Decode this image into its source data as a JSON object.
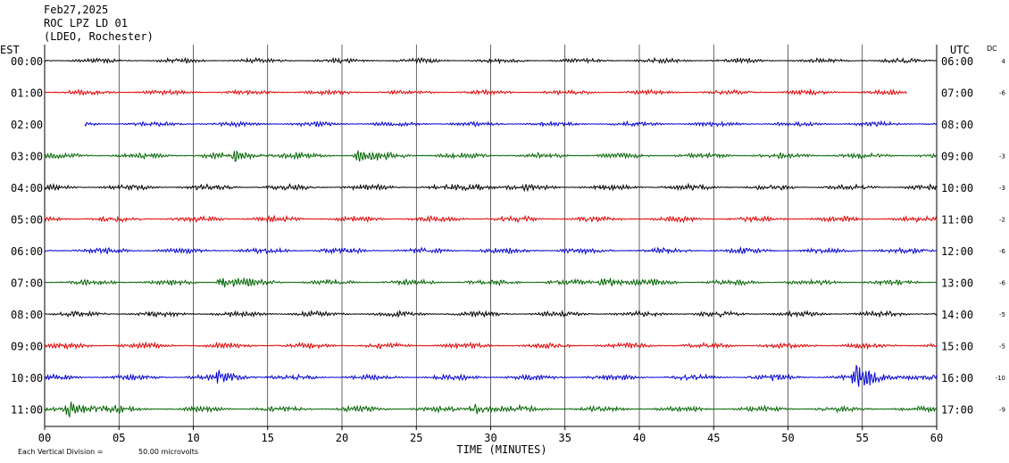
{
  "header": {
    "date": "Feb27,2025",
    "station": "ROC LPZ LD 01",
    "network": "(LDEO, Rochester)"
  },
  "chart_data": {
    "type": "line",
    "left_axis_label": "EST",
    "right_axis_label": "UTC",
    "dc_label": "DC",
    "xlabel": "TIME (MINUTES)",
    "xlim": [
      0,
      60
    ],
    "x_ticks": [
      "00",
      "05",
      "10",
      "15",
      "20",
      "25",
      "30",
      "35",
      "40",
      "45",
      "50",
      "55",
      "60"
    ],
    "grid": "vertical every 5 minutes",
    "footer_note_prefix": "Each Vertical Division =",
    "footer_note_value": "50.00 microvolts",
    "trace_colors": [
      "#000000",
      "#e00000",
      "#0000d0",
      "#006400"
    ],
    "rows": [
      {
        "est": "00:00",
        "utc": "06:00",
        "dc": "4",
        "start_min": 0,
        "end_min": 60,
        "amp": 2.5,
        "events": []
      },
      {
        "est": "01:00",
        "utc": "07:00",
        "dc": "-6",
        "start_min": 0,
        "end_min": 58,
        "amp": 2.5,
        "events": []
      },
      {
        "est": "02:00",
        "utc": "08:00",
        "dc": "",
        "start_min": 2.7,
        "end_min": 60,
        "amp": 2.5,
        "events": []
      },
      {
        "est": "03:00",
        "utc": "09:00",
        "dc": "-3",
        "start_min": 0,
        "end_min": 60,
        "amp": 3,
        "events": [
          {
            "t": 12.8,
            "a": 5
          },
          {
            "t": 21,
            "a": 5
          }
        ]
      },
      {
        "est": "04:00",
        "utc": "10:00",
        "dc": "-3",
        "start_min": 0,
        "end_min": 60,
        "amp": 3,
        "events": [
          {
            "t": 28.5,
            "a": 4
          }
        ]
      },
      {
        "est": "05:00",
        "utc": "11:00",
        "dc": "-2",
        "start_min": 0,
        "end_min": 60,
        "amp": 3,
        "events": []
      },
      {
        "est": "06:00",
        "utc": "12:00",
        "dc": "-6",
        "start_min": 0,
        "end_min": 60,
        "amp": 3,
        "events": []
      },
      {
        "est": "07:00",
        "utc": "13:00",
        "dc": "-6",
        "start_min": 0,
        "end_min": 60,
        "amp": 3,
        "events": [
          {
            "t": 11.8,
            "a": 5
          },
          {
            "t": 37.5,
            "a": 6
          }
        ]
      },
      {
        "est": "08:00",
        "utc": "14:00",
        "dc": "-5",
        "start_min": 0,
        "end_min": 60,
        "amp": 3,
        "events": []
      },
      {
        "est": "09:00",
        "utc": "15:00",
        "dc": "-5",
        "start_min": 0,
        "end_min": 60,
        "amp": 3,
        "events": []
      },
      {
        "est": "10:00",
        "utc": "16:00",
        "dc": "-10",
        "start_min": 0,
        "end_min": 60,
        "amp": 3,
        "events": [
          {
            "t": 11.5,
            "a": 5
          },
          {
            "t": 54.5,
            "a": 14
          }
        ]
      },
      {
        "est": "11:00",
        "utc": "17:00",
        "dc": "-9",
        "start_min": 0,
        "end_min": 60,
        "amp": 3,
        "events": [
          {
            "t": 1.5,
            "a": 10
          },
          {
            "t": 28.8,
            "a": 6
          }
        ]
      }
    ]
  }
}
